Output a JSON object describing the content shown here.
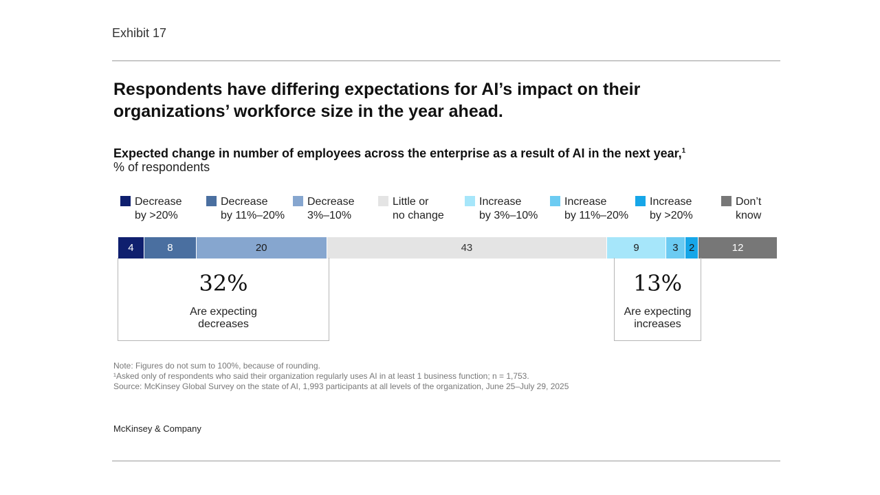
{
  "exhibit": "Exhibit 17",
  "title": "Respondents have differing expectations for AI’s impact on their organizations’ workforce size in the year ahead.",
  "notes": {
    "note": "Note: Figures do not sum to 100%, because of rounding.",
    "footnote": "¹Asked only of respondents who said their organization regularly uses AI in at least 1 business function; n = 1,753.",
    "source": "Source: McKinsey Global Survey on the state of AI, 1,993 participants at all levels of the organization, June 25–July 29, 2025"
  },
  "brand": "McKinsey & Company",
  "callouts": {
    "decrease": {
      "value": "32%",
      "label": "Are expecting decreases"
    },
    "increase": {
      "value": "13%",
      "label": "Are expecting increases"
    }
  },
  "chart_data": {
    "type": "bar",
    "orientation": "horizontal-stacked-100",
    "title": "Expected change in number of employees across the enterprise as a result of AI in the next year,",
    "title_footnote_mark": "1",
    "unit_label": "% of respondents",
    "categories": [
      "Decrease by >20%",
      "Decrease by 11%–20%",
      "Decrease 3%–10%",
      "Little or no change",
      "Increase by 3%–10%",
      "Increase by 11%–20%",
      "Increase by >20%",
      "Don’t know"
    ],
    "legend_labels": [
      "Decrease\nby >20%",
      "Decrease\nby 11%–20%",
      "Decrease\n3%–10%",
      "Little or\nno change",
      "Increase\nby 3%–10%",
      "Increase\nby 11%–20%",
      "Increase\nby >20%",
      "Don’t\nknow"
    ],
    "values": [
      4,
      8,
      20,
      43,
      9,
      3,
      2,
      12
    ],
    "colors": [
      "#0f1f6e",
      "#4a6fa0",
      "#86a6cf",
      "#e4e4e4",
      "#a6e6fa",
      "#6ccbf2",
      "#16a6e8",
      "#777777"
    ],
    "label_colors": [
      "#ffffff",
      "#ffffff",
      "#1a1a1a",
      "#333333",
      "#1a1a1a",
      "#1a1a1a",
      "#1a1a1a",
      "#ffffff"
    ],
    "legend": "top",
    "grid": false
  }
}
